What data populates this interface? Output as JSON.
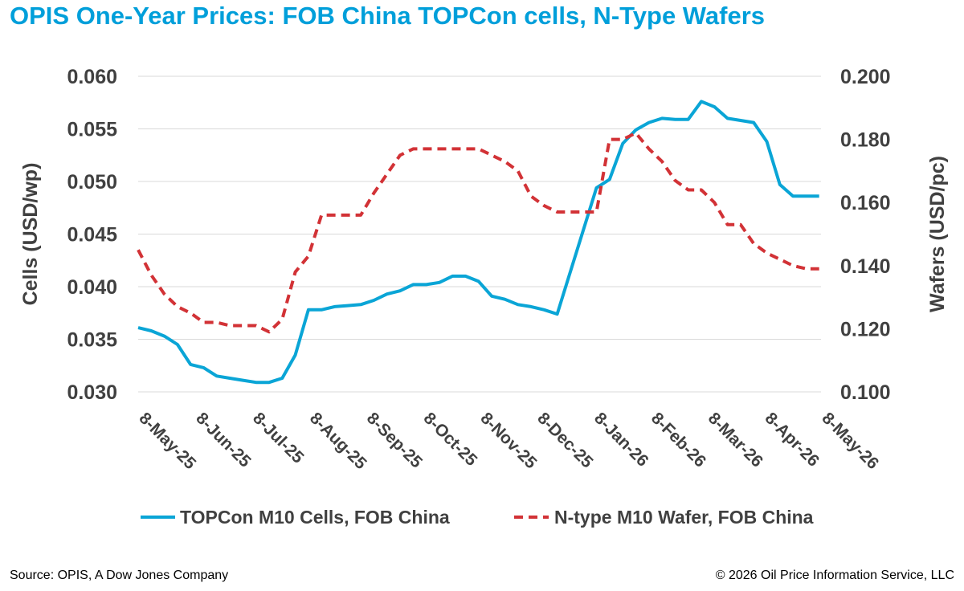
{
  "title": "OPIS One-Year Prices: FOB China TOPCon cells, N-Type Wafers",
  "colors": {
    "title": "#009fda",
    "cells": "#0aa5d6",
    "wafers": "#d23236"
  },
  "footer": {
    "source": "Source: OPIS, A Dow Jones Company",
    "copyright": "© 2026 Oil Price Information Service, LLC"
  },
  "chart_data": {
    "type": "line",
    "grid": "horizontal",
    "legend_position": "bottom",
    "x_ticks": [
      "8-May-25",
      "8-Jun-25",
      "8-Jul-25",
      "8-Aug-25",
      "8-Sep-25",
      "8-Oct-25",
      "8-Nov-25",
      "8-Dec-25",
      "8-Jan-26",
      "8-Feb-26",
      "8-Mar-26",
      "8-Apr-26",
      "8-May-26"
    ],
    "x_range": [
      "2025-05-08",
      "2026-05-08"
    ],
    "y_left": {
      "label": "Cells (USD/wp)",
      "range": [
        0.03,
        0.06
      ],
      "ticks": [
        "0.030",
        "0.035",
        "0.040",
        "0.045",
        "0.050",
        "0.055",
        "0.060"
      ]
    },
    "y_right": {
      "label": "Wafers (USD/pc)",
      "range": [
        0.1,
        0.2
      ],
      "ticks": [
        "0.100",
        "0.120",
        "0.140",
        "0.160",
        "0.180",
        "0.200"
      ]
    },
    "series": [
      {
        "name": "TOPCon M10 Cells, FOB China",
        "axis": "left",
        "style": "solid",
        "points": [
          [
            "2025-05-08",
            0.0361
          ],
          [
            "2025-05-15",
            0.0358
          ],
          [
            "2025-05-22",
            0.0353
          ],
          [
            "2025-05-29",
            0.0345
          ],
          [
            "2025-06-05",
            0.0326
          ],
          [
            "2025-06-12",
            0.0323
          ],
          [
            "2025-06-19",
            0.0315
          ],
          [
            "2025-06-26",
            0.0313
          ],
          [
            "2025-07-03",
            0.0311
          ],
          [
            "2025-07-10",
            0.0309
          ],
          [
            "2025-07-17",
            0.0309
          ],
          [
            "2025-07-24",
            0.0313
          ],
          [
            "2025-07-31",
            0.0335
          ],
          [
            "2025-08-07",
            0.0378
          ],
          [
            "2025-08-14",
            0.0378
          ],
          [
            "2025-08-21",
            0.0381
          ],
          [
            "2025-08-28",
            0.0382
          ],
          [
            "2025-09-04",
            0.0383
          ],
          [
            "2025-09-11",
            0.0387
          ],
          [
            "2025-09-18",
            0.0393
          ],
          [
            "2025-09-25",
            0.0396
          ],
          [
            "2025-10-02",
            0.0402
          ],
          [
            "2025-10-09",
            0.0402
          ],
          [
            "2025-10-16",
            0.0404
          ],
          [
            "2025-10-23",
            0.041
          ],
          [
            "2025-10-30",
            0.041
          ],
          [
            "2025-11-06",
            0.0405
          ],
          [
            "2025-11-13",
            0.0391
          ],
          [
            "2025-11-20",
            0.0388
          ],
          [
            "2025-11-27",
            0.0383
          ],
          [
            "2025-12-04",
            0.0381
          ],
          [
            "2025-12-11",
            0.0378
          ],
          [
            "2025-12-18",
            0.0374
          ],
          [
            "2026-01-08",
            0.0494
          ],
          [
            "2026-01-15",
            0.0502
          ],
          [
            "2026-01-22",
            0.0536
          ],
          [
            "2026-01-29",
            0.0549
          ],
          [
            "2026-02-05",
            0.0556
          ],
          [
            "2026-02-12",
            0.056
          ],
          [
            "2026-02-19",
            0.0559
          ],
          [
            "2026-02-26",
            0.0559
          ],
          [
            "2026-03-05",
            0.0576
          ],
          [
            "2026-03-12",
            0.0571
          ],
          [
            "2026-03-19",
            0.056
          ],
          [
            "2026-03-26",
            0.0558
          ],
          [
            "2026-04-02",
            0.0556
          ],
          [
            "2026-04-09",
            0.0538
          ],
          [
            "2026-04-16",
            0.0497
          ],
          [
            "2026-04-23",
            0.0486
          ],
          [
            "2026-04-30",
            0.0486
          ],
          [
            "2026-05-07",
            0.0486
          ]
        ]
      },
      {
        "name": "N-type M10 Wafer, FOB China",
        "axis": "right",
        "style": "dashed",
        "points": [
          [
            "2025-05-08",
            0.145
          ],
          [
            "2025-05-15",
            0.137
          ],
          [
            "2025-05-22",
            0.131
          ],
          [
            "2025-05-29",
            0.127
          ],
          [
            "2025-06-05",
            0.125
          ],
          [
            "2025-06-12",
            0.122
          ],
          [
            "2025-06-19",
            0.122
          ],
          [
            "2025-06-26",
            0.121
          ],
          [
            "2025-07-03",
            0.121
          ],
          [
            "2025-07-10",
            0.121
          ],
          [
            "2025-07-17",
            0.119
          ],
          [
            "2025-07-24",
            0.123
          ],
          [
            "2025-07-31",
            0.138
          ],
          [
            "2025-08-07",
            0.143
          ],
          [
            "2025-08-14",
            0.156
          ],
          [
            "2025-08-21",
            0.156
          ],
          [
            "2025-08-28",
            0.156
          ],
          [
            "2025-09-04",
            0.156
          ],
          [
            "2025-09-11",
            0.163
          ],
          [
            "2025-09-18",
            0.169
          ],
          [
            "2025-09-25",
            0.175
          ],
          [
            "2025-10-02",
            0.177
          ],
          [
            "2025-10-09",
            0.177
          ],
          [
            "2025-10-16",
            0.177
          ],
          [
            "2025-10-23",
            0.177
          ],
          [
            "2025-10-30",
            0.177
          ],
          [
            "2025-11-06",
            0.177
          ],
          [
            "2025-11-13",
            0.175
          ],
          [
            "2025-11-20",
            0.173
          ],
          [
            "2025-11-27",
            0.17
          ],
          [
            "2025-12-04",
            0.162
          ],
          [
            "2025-12-11",
            0.159
          ],
          [
            "2025-12-18",
            0.157
          ],
          [
            "2026-01-01",
            0.157
          ],
          [
            "2026-01-08",
            0.157
          ],
          [
            "2026-01-15",
            0.18
          ],
          [
            "2026-01-22",
            0.18
          ],
          [
            "2026-01-29",
            0.182
          ],
          [
            "2026-02-05",
            0.177
          ],
          [
            "2026-02-12",
            0.173
          ],
          [
            "2026-02-19",
            0.167
          ],
          [
            "2026-02-26",
            0.164
          ],
          [
            "2026-03-05",
            0.164
          ],
          [
            "2026-03-12",
            0.16
          ],
          [
            "2026-03-19",
            0.153
          ],
          [
            "2026-03-26",
            0.153
          ],
          [
            "2026-04-02",
            0.147
          ],
          [
            "2026-04-09",
            0.144
          ],
          [
            "2026-04-16",
            0.142
          ],
          [
            "2026-04-23",
            0.14
          ],
          [
            "2026-04-30",
            0.139
          ],
          [
            "2026-05-07",
            0.139
          ]
        ]
      }
    ]
  }
}
